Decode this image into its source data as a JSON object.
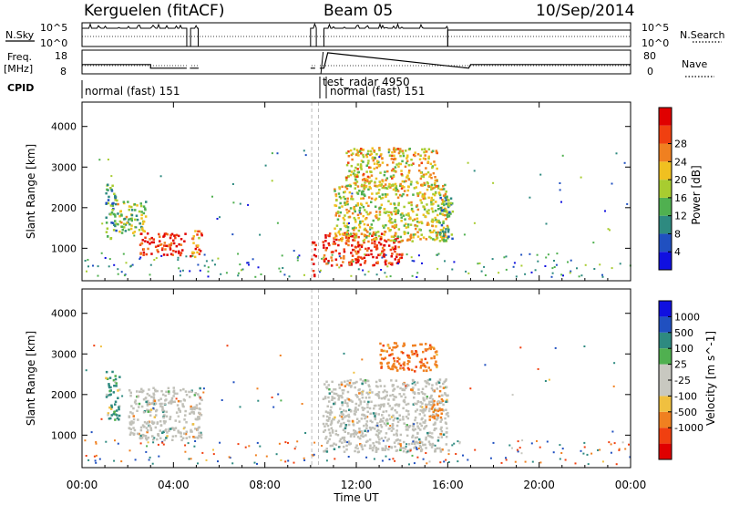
{
  "header": {
    "station": "Kerguelen (fitACF)",
    "beam": "Beam 05",
    "date": "10/Sep/2014"
  },
  "labels": {
    "nsky": "N.Sky",
    "nsearch": "N.Search",
    "freq_line1": "Freq.",
    "freq_line2": "[MHz]",
    "nave": "Nave",
    "cpid": "CPID",
    "cpid_normal_1": "normal (fast) 151",
    "cpid_test": "test_radar 4950",
    "cpid_normal_2": "normal (fast) 151"
  },
  "noise_axis": {
    "left_top": "10^5",
    "left_bottom": "10^0",
    "right_top": "10^5",
    "right_bottom": "10^0"
  },
  "freq_axis": {
    "left_ticks": [
      "18",
      "8"
    ],
    "right_ticks": [
      "80",
      "0"
    ]
  },
  "colors": {
    "power_scale": [
      "#1010e0",
      "#2050c0",
      "#2e8a80",
      "#50b050",
      "#a8cc30",
      "#f0c020",
      "#f08020",
      "#f04010",
      "#e00000"
    ],
    "velocity_scale": [
      "#e00000",
      "#f04010",
      "#f08020",
      "#f0c040",
      "#c8c8c0",
      "#c8c8c0",
      "#50b050",
      "#2e8a80",
      "#2050c0",
      "#1010e0"
    ],
    "ground_scatter": "#c0c0b8"
  },
  "chart_data": [
    {
      "type": "line",
      "name": "noise-panel",
      "series": [
        {
          "name": "N.Sky",
          "segments": [
            {
              "x": [
                "00:00",
                "04:35"
              ],
              "level": "high"
            },
            {
              "x": [
                "04:45",
                "05:05"
              ],
              "level": "high"
            },
            {
              "x": [
                "10:00",
                "10:15"
              ],
              "level": "high"
            },
            {
              "x": [
                "10:35",
                "16:00"
              ],
              "level": "high"
            },
            {
              "x": [
                "16:00",
                "24:00"
              ],
              "level": "mid"
            }
          ]
        },
        {
          "name": "N.Search",
          "style": "dotted"
        }
      ]
    },
    {
      "type": "line",
      "name": "frequency-panel",
      "series": [
        {
          "name": "Freq.",
          "points": [
            [
              "00:00",
              11.5
            ],
            [
              "03:00",
              11.5
            ],
            [
              "03:00",
              9.8
            ],
            [
              "04:35",
              9.8
            ],
            [
              "10:35",
              9.8
            ],
            [
              "10:45",
              17
            ],
            [
              "16:55",
              9.8
            ],
            [
              "17:00",
              11.5
            ],
            [
              "24:00",
              11.5
            ]
          ]
        },
        {
          "name": "Nave",
          "style": "dotted"
        }
      ]
    },
    {
      "type": "heatmap",
      "title": "",
      "xlabel": "Time UT",
      "ylabel": "Slant Range [km]",
      "xticks": [
        "00:00",
        "04:00",
        "08:00",
        "12:00",
        "16:00",
        "20:00",
        "00:00"
      ],
      "xlim": [
        0,
        24
      ],
      "yticks": [
        1000,
        2000,
        3000,
        4000
      ],
      "ylim": [
        200,
        4600
      ],
      "colorbar": {
        "label": "Power [dB]",
        "ticks": [
          4,
          8,
          12,
          16,
          20,
          24,
          28
        ]
      },
      "regions": [
        {
          "t": [
            1.0,
            1.5
          ],
          "r": [
            1200,
            2600
          ],
          "power": 10
        },
        {
          "t": [
            1.5,
            2.8
          ],
          "r": [
            1400,
            2200
          ],
          "power": 14
        },
        {
          "t": [
            2.5,
            4.5
          ],
          "r": [
            850,
            1400
          ],
          "power": 26
        },
        {
          "t": [
            4.7,
            5.2
          ],
          "r": [
            800,
            1500
          ],
          "power": 22
        },
        {
          "t": [
            10.0,
            10.2
          ],
          "r": [
            300,
            1200
          ],
          "power": 26
        },
        {
          "t": [
            10.5,
            14.0
          ],
          "r": [
            600,
            1400
          ],
          "power": 26
        },
        {
          "t": [
            11.0,
            16.0
          ],
          "r": [
            1200,
            2600
          ],
          "power": 16
        },
        {
          "t": [
            11.5,
            15.5
          ],
          "r": [
            2500,
            3500
          ],
          "power": 18
        },
        {
          "t": [
            15.6,
            16.2
          ],
          "r": [
            1200,
            2300
          ],
          "power": 10
        }
      ]
    },
    {
      "type": "heatmap",
      "title": "",
      "xlabel": "Time UT",
      "ylabel": "Slant Range [km]",
      "xticks": [
        "00:00",
        "04:00",
        "08:00",
        "12:00",
        "16:00",
        "20:00",
        "00:00"
      ],
      "xlim": [
        0,
        24
      ],
      "yticks": [
        1000,
        2000,
        3000,
        4000
      ],
      "ylim": [
        200,
        4600
      ],
      "colorbar": {
        "label": "Velocity [m s^-1]",
        "ticks": [
          1000,
          500,
          100,
          25,
          -25,
          -100,
          -500,
          -1000
        ]
      },
      "regions": [
        {
          "t": [
            1.0,
            1.6
          ],
          "r": [
            1400,
            2600
          ],
          "velocity": 100
        },
        {
          "t": [
            2.0,
            5.2
          ],
          "r": [
            900,
            2200
          ],
          "velocity": 0,
          "ground_scatter": true
        },
        {
          "t": [
            10.5,
            16.0
          ],
          "r": [
            600,
            2400
          ],
          "velocity": 0,
          "ground_scatter": true
        },
        {
          "t": [
            13.0,
            15.5
          ],
          "r": [
            2600,
            3300
          ],
          "velocity": -200
        },
        {
          "t": [
            15.0,
            15.8
          ],
          "r": [
            1400,
            1900
          ],
          "velocity": -100
        }
      ]
    }
  ]
}
